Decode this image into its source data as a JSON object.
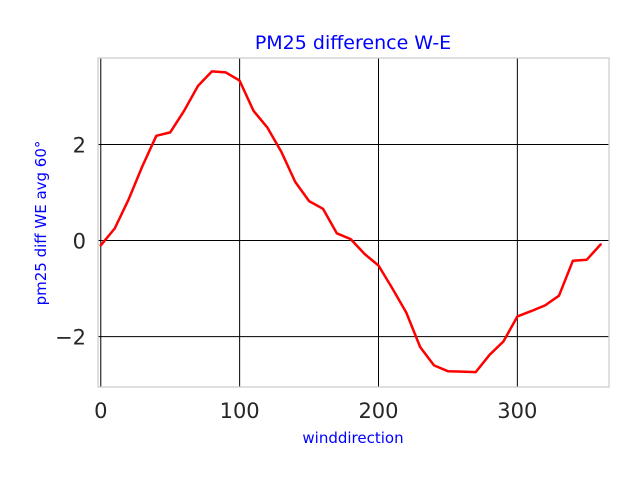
{
  "chart_data": {
    "type": "line",
    "title": "PM25 difference W-E",
    "xlabel": "winddirection",
    "ylabel": "pm25 diff WE avg 60°",
    "xlim": [
      -2,
      366
    ],
    "ylim": [
      -3.05,
      3.8
    ],
    "xticks": [
      0,
      100,
      200,
      300
    ],
    "yticks": [
      -2,
      0,
      2
    ],
    "grid": true,
    "series_color": "#ff0000",
    "series": [
      {
        "x": [
          0,
          10,
          20,
          30,
          40,
          50,
          60,
          70,
          80,
          90,
          100,
          110,
          120,
          130,
          140,
          150,
          160,
          170,
          180,
          190,
          200,
          210,
          220,
          230,
          240,
          250,
          260,
          270,
          280,
          290,
          300,
          310,
          320,
          330,
          340,
          350,
          360
        ],
        "values": [
          -0.1,
          0.25,
          0.85,
          1.55,
          2.18,
          2.25,
          2.7,
          3.22,
          3.52,
          3.5,
          3.33,
          2.7,
          2.35,
          1.85,
          1.22,
          0.82,
          0.66,
          0.15,
          0.03,
          -0.28,
          -0.52,
          -1.0,
          -1.5,
          -2.22,
          -2.6,
          -2.72,
          -2.73,
          -2.74,
          -2.38,
          -2.1,
          -1.58,
          -1.47,
          -1.35,
          -1.15,
          -0.42,
          -0.4,
          -0.08
        ]
      }
    ]
  }
}
